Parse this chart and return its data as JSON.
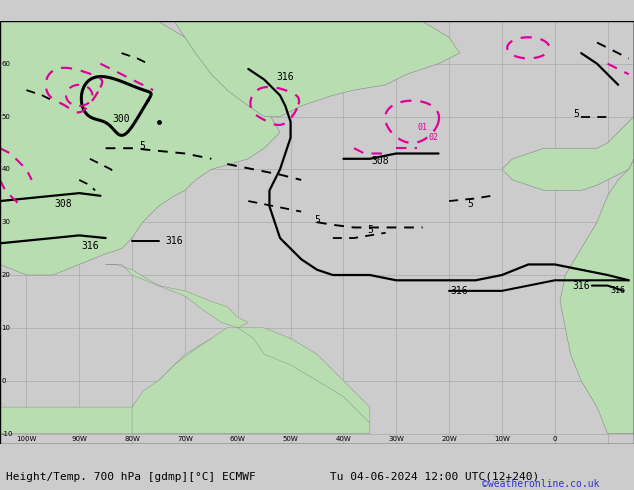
{
  "title_bottom": "Height/Temp. 700 hPa [gdmp][°C] ECMWF",
  "title_right": "Tu 04-06-2024 12:00 UTC(12+240)",
  "credit": "©weatheronline.co.uk",
  "bg_color": "#cccccc",
  "ocean_color": "#d2d2d2",
  "land_color": "#b8ddb0",
  "grid_color": "#aaaaaa",
  "border_color": "#888888",
  "black": "#000000",
  "pink": "#dd0099",
  "font_size_label": 7,
  "font_size_bottom": 8,
  "font_size_credit": 7,
  "figsize": [
    6.34,
    4.9
  ],
  "dpi": 100,
  "lon_min": -105,
  "lon_max": 15,
  "lat_min": -12,
  "lat_max": 68
}
